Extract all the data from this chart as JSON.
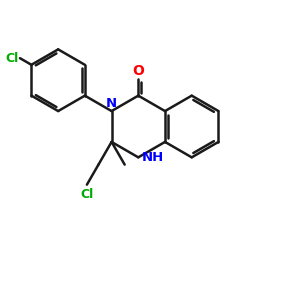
{
  "background_color": "#ffffff",
  "bond_color": "#1a1a1a",
  "n_color": "#0000ff",
  "o_color": "#ff0000",
  "cl_color": "#00aa00",
  "bond_width": 1.8,
  "figsize": [
    3.0,
    3.0
  ],
  "dpi": 100,
  "xlim": [
    0,
    10
  ],
  "ylim": [
    0,
    10
  ]
}
